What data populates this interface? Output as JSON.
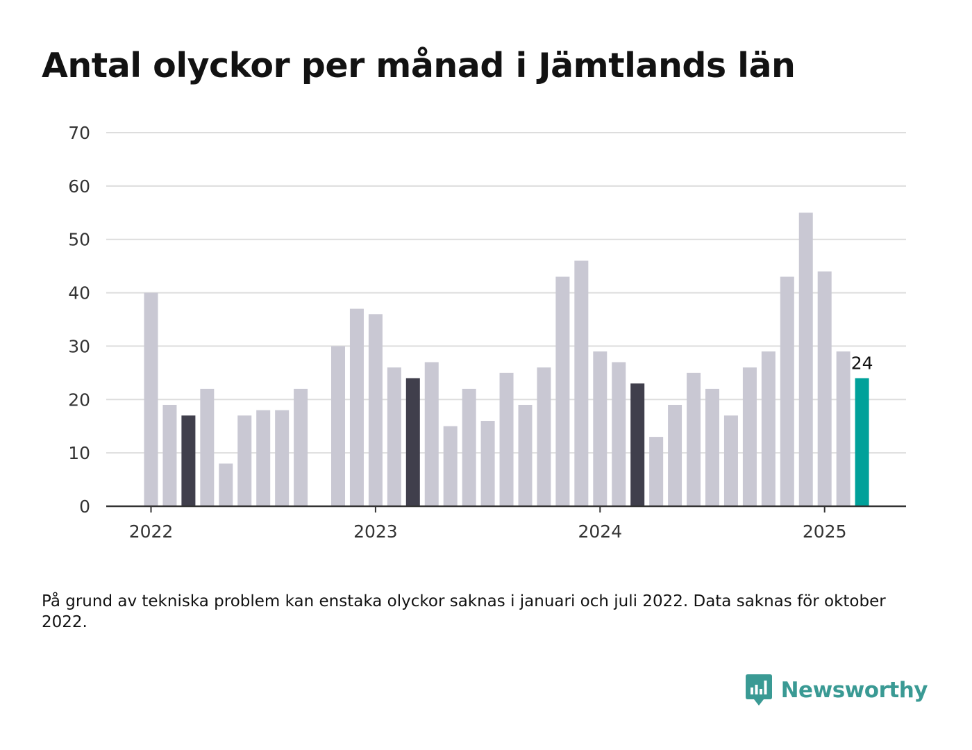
{
  "title": "Antal olyckor per månad i Jämtlands län",
  "note": "På grund av tekniska problem kan enstaka olyckor saknas i januari och juli 2022. Data saknas för oktober 2022.",
  "brand": {
    "name": "Newsworthy",
    "icon": "bar-chart-speech-bubble-icon",
    "color": "#3a9a94"
  },
  "colors": {
    "default_bar": "#c9c8d3",
    "highlight_bar": "#403f4c",
    "latest_bar": "#00a19a",
    "gridline": "#dddddd",
    "axis": "#333333"
  },
  "chart_data": {
    "type": "bar",
    "title": "Antal olyckor per månad i Jämtlands län",
    "xlabel": "",
    "ylabel": "",
    "ylim": [
      0,
      70
    ],
    "yticks": [
      0,
      10,
      20,
      30,
      40,
      50,
      60,
      70
    ],
    "grid": true,
    "legend": "none",
    "x_tick_labels": [
      "2022",
      "2023",
      "2024",
      "2025"
    ],
    "x_tick_months": [
      "2022-01",
      "2023-01",
      "2024-01",
      "2025-01"
    ],
    "months": [
      "2022-01",
      "2022-02",
      "2022-03",
      "2022-04",
      "2022-05",
      "2022-06",
      "2022-07",
      "2022-08",
      "2022-09",
      "2022-10",
      "2022-11",
      "2022-12",
      "2023-01",
      "2023-02",
      "2023-03",
      "2023-04",
      "2023-05",
      "2023-06",
      "2023-07",
      "2023-08",
      "2023-09",
      "2023-10",
      "2023-11",
      "2023-12",
      "2024-01",
      "2024-02",
      "2024-03",
      "2024-04",
      "2024-05",
      "2024-06",
      "2024-07",
      "2024-08",
      "2024-09",
      "2024-10",
      "2024-11",
      "2024-12",
      "2025-01",
      "2025-02",
      "2025-03"
    ],
    "values": [
      40,
      19,
      17,
      22,
      8,
      17,
      18,
      18,
      22,
      null,
      30,
      37,
      36,
      26,
      24,
      27,
      15,
      22,
      16,
      25,
      19,
      26,
      43,
      46,
      29,
      27,
      23,
      13,
      19,
      25,
      22,
      17,
      26,
      29,
      43,
      55,
      44,
      29,
      24
    ],
    "highlighted_months": [
      "2022-03",
      "2023-03",
      "2024-03"
    ],
    "latest_month": "2025-03",
    "data_labels": [
      {
        "month": "2025-03",
        "text": "24"
      }
    ]
  }
}
